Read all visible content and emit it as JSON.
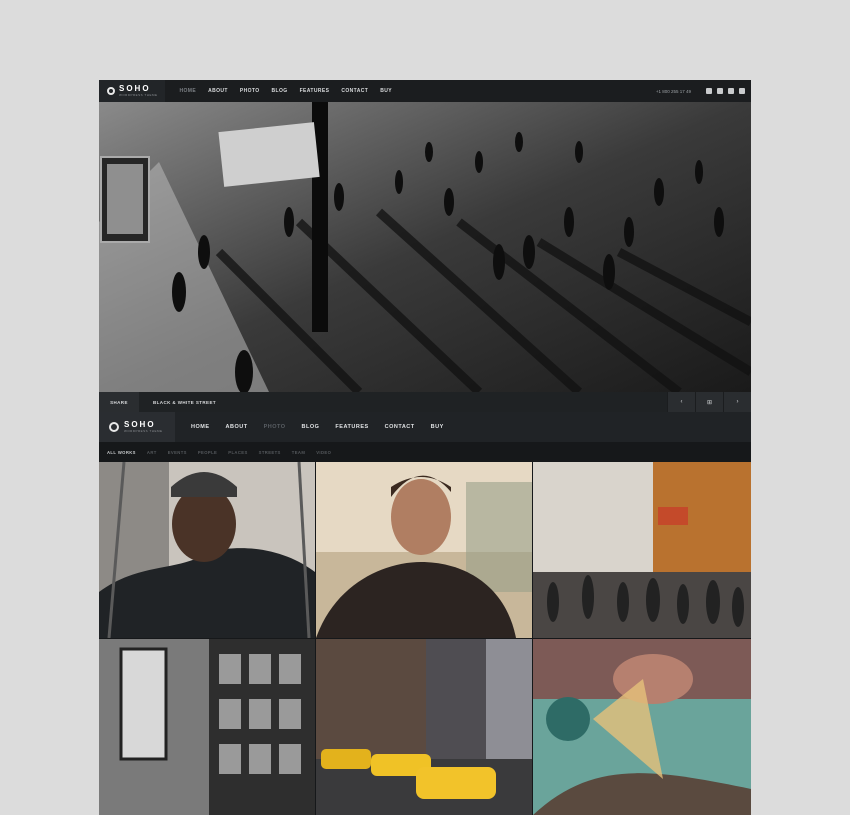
{
  "brand": {
    "name": "SOHO",
    "tagline": "WORDPRESS THEME"
  },
  "top_nav": {
    "items": [
      "HOME",
      "ABOUT",
      "PHOTO",
      "BLOG",
      "FEATURES",
      "CONTACT",
      "BUY"
    ],
    "active": "HOME"
  },
  "phone": "+1 800 255 17 49",
  "social_icons": [
    "facebook-icon",
    "twitter-icon",
    "instagram-icon",
    "vimeo-icon"
  ],
  "slider": {
    "share_label": "SHARE",
    "caption": "BLACK & WHITE STREET",
    "prev_symbol": "‹",
    "grid_symbol": "⊞",
    "next_symbol": "›"
  },
  "main_nav": {
    "items": [
      "HOME",
      "ABOUT",
      "PHOTO",
      "BLOG",
      "FEATURES",
      "CONTACT",
      "BUY"
    ],
    "active": "PHOTO"
  },
  "filters": {
    "items": [
      "ALL WORKS",
      "ART",
      "EVENTS",
      "PEOPLE",
      "PLACES",
      "STREETS",
      "TEAM",
      "VIDEO"
    ],
    "active": "ALL WORKS"
  },
  "colors": {
    "frame_bg": "#16181a",
    "nav_bg": "#202326",
    "text_light": "#e0e2e4",
    "muted": "#5a5f64"
  }
}
